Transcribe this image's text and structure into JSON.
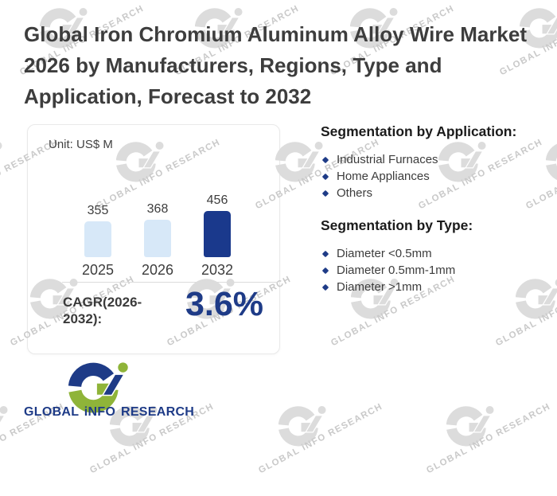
{
  "title": "Global Iron Chromium Aluminum Alloy Wire Market 2026 by Manufacturers, Regions, Type and Application, Forecast to 2032",
  "chart_card": {
    "unit_label": "Unit: US$ M",
    "cagr_label": "CAGR(2026-2032):",
    "cagr_value": "3.6%"
  },
  "chart_data": {
    "type": "bar",
    "categories": [
      "2025",
      "2026",
      "2032"
    ],
    "values": [
      355,
      368,
      456
    ],
    "unit": "US$ M",
    "bar_colors": [
      "#d7e8f8",
      "#d7e8f8",
      "#1a398c"
    ],
    "data_labels": [
      355,
      368,
      456
    ],
    "cagr": {
      "label": "CAGR(2026-2032):",
      "value": "3.6%"
    },
    "grid": false,
    "axes_shown": false
  },
  "segmentation_application": {
    "heading": "Segmentation by Application:",
    "items": [
      "Industrial Furnaces",
      "Home Appliances",
      "Others"
    ]
  },
  "segmentation_type": {
    "heading": "Segmentation by Type:",
    "items": [
      "Diameter <0.5mm",
      "Diameter 0.5mm-1mm",
      "Diameter >1mm"
    ]
  },
  "footer": {
    "brand_text": "GLOBAL iNFO RESEARCH"
  },
  "watermark": {
    "text": "GLOBAL iNFO RESEARCH"
  },
  "colors": {
    "navy": "#1e3b87",
    "green": "#8fb439",
    "light_bar": "#d7e8f8",
    "dark_bar": "#1a398c",
    "title_text": "#3d3d3d",
    "watermark_gray": "#dcdcdc"
  }
}
